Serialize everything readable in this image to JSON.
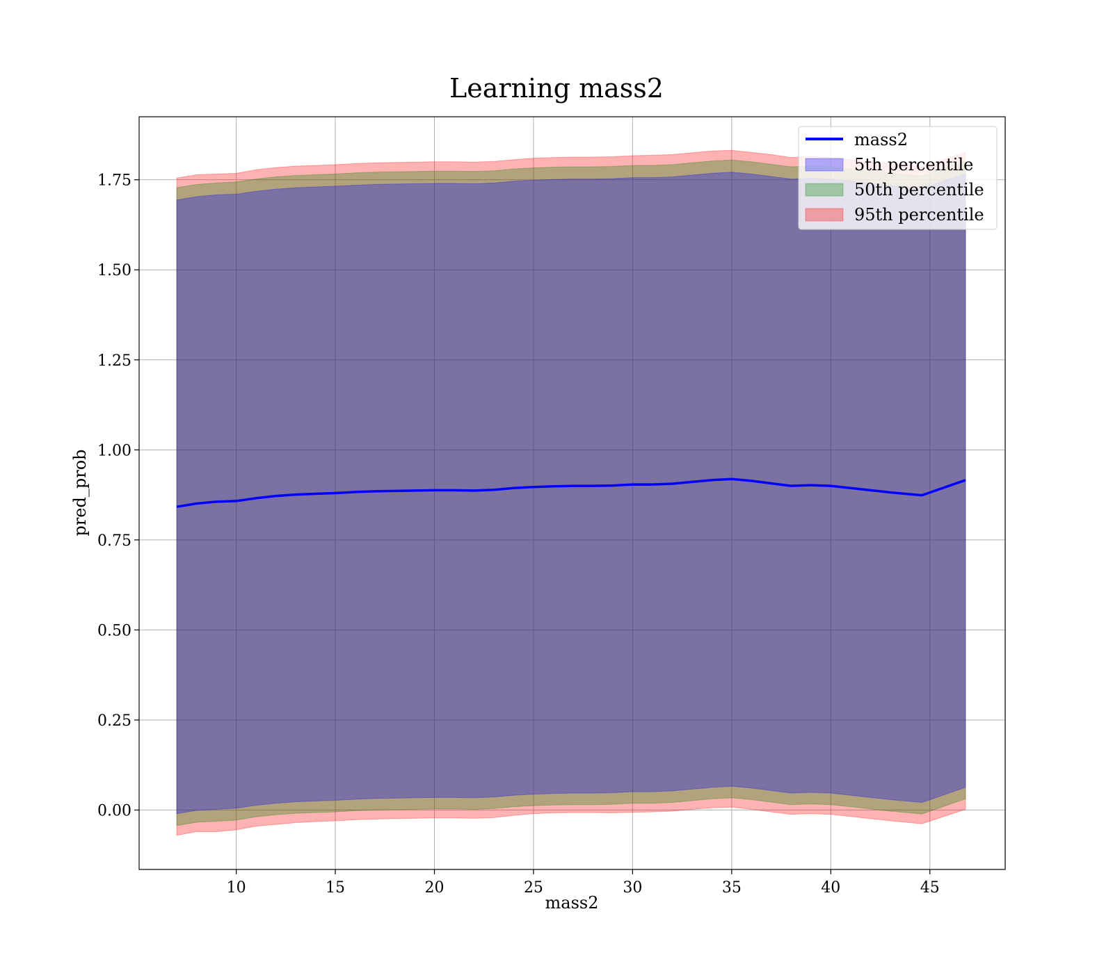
{
  "chart_data": {
    "type": "area",
    "title": "Learning mass2",
    "xlabel": "mass2",
    "ylabel": "pred_prob",
    "xlim": [
      5.1,
      48.8
    ],
    "ylim": [
      -0.165,
      1.925
    ],
    "xticks": [
      10,
      15,
      20,
      25,
      30,
      35,
      40,
      45
    ],
    "yticks": [
      0.0,
      0.25,
      0.5,
      0.75,
      1.0,
      1.25,
      1.5,
      1.75
    ],
    "xtick_labels": [
      "10",
      "15",
      "20",
      "25",
      "30",
      "35",
      "40",
      "45"
    ],
    "ytick_labels": [
      "0.00",
      "0.25",
      "0.50",
      "0.75",
      "1.00",
      "1.25",
      "1.50",
      "1.75"
    ],
    "grid": true,
    "legend_position": "top-right",
    "colors": {
      "line": "#0000ff",
      "band_5th": "#0000ff",
      "band_50th": "#008000",
      "band_95th": "#ff0000"
    },
    "legend": {
      "line_label": "mass2",
      "bands": [
        "5th percentile",
        "50th percentile",
        "95th percentile"
      ]
    },
    "x": [
      7.0,
      8.0,
      9.0,
      10.0,
      11.0,
      12.0,
      13.0,
      14.0,
      15.0,
      16.0,
      17.0,
      18.0,
      19.0,
      20.0,
      21.0,
      22.0,
      23.0,
      24.0,
      25.0,
      26.0,
      27.0,
      28.0,
      29.0,
      30.0,
      31.0,
      32.0,
      33.0,
      34.0,
      35.0,
      36.0,
      37.0,
      38.0,
      39.0,
      40.0,
      41.0,
      42.0,
      43.0,
      44.0,
      44.6,
      46.8
    ],
    "series": [
      {
        "name": "mass2",
        "values": [
          0.842,
          0.851,
          0.856,
          0.858,
          0.866,
          0.872,
          0.876,
          0.878,
          0.88,
          0.883,
          0.885,
          0.886,
          0.887,
          0.888,
          0.888,
          0.887,
          0.889,
          0.894,
          0.897,
          0.899,
          0.9,
          0.9,
          0.901,
          0.904,
          0.904,
          0.906,
          0.911,
          0.916,
          0.919,
          0.914,
          0.907,
          0.9,
          0.902,
          0.9,
          0.894,
          0.888,
          0.882,
          0.877,
          0.874,
          0.916
        ]
      }
    ],
    "bands": [
      {
        "name": "95th percentile",
        "lower": [
          -0.07,
          -0.06,
          -0.06,
          -0.055,
          -0.045,
          -0.04,
          -0.035,
          -0.032,
          -0.03,
          -0.027,
          -0.025,
          -0.024,
          -0.023,
          -0.022,
          -0.022,
          -0.023,
          -0.021,
          -0.015,
          -0.01,
          -0.008,
          -0.007,
          -0.007,
          -0.008,
          -0.006,
          -0.005,
          -0.003,
          0.002,
          0.006,
          0.008,
          0.002,
          -0.005,
          -0.012,
          -0.01,
          -0.012,
          -0.018,
          -0.024,
          -0.03,
          -0.035,
          -0.038,
          0.002
        ],
        "upper": [
          1.755,
          1.764,
          1.766,
          1.768,
          1.778,
          1.784,
          1.788,
          1.79,
          1.792,
          1.795,
          1.797,
          1.798,
          1.799,
          1.8,
          1.8,
          1.799,
          1.801,
          1.806,
          1.81,
          1.812,
          1.813,
          1.813,
          1.814,
          1.817,
          1.818,
          1.82,
          1.825,
          1.83,
          1.832,
          1.826,
          1.82,
          1.812,
          1.814,
          1.812,
          1.806,
          1.8,
          1.794,
          1.79,
          1.786,
          1.827
        ]
      },
      {
        "name": "50th percentile",
        "lower": [
          -0.043,
          -0.034,
          -0.031,
          -0.028,
          -0.019,
          -0.013,
          -0.009,
          -0.007,
          -0.005,
          -0.002,
          0.0,
          0.001,
          0.002,
          0.003,
          0.003,
          0.002,
          0.004,
          0.009,
          0.012,
          0.014,
          0.015,
          0.015,
          0.016,
          0.019,
          0.019,
          0.021,
          0.026,
          0.031,
          0.034,
          0.029,
          0.022,
          0.015,
          0.017,
          0.015,
          0.009,
          0.003,
          -0.003,
          -0.008,
          -0.011,
          0.031
        ],
        "upper": [
          1.728,
          1.737,
          1.741,
          1.744,
          1.752,
          1.758,
          1.762,
          1.764,
          1.766,
          1.769,
          1.771,
          1.772,
          1.773,
          1.774,
          1.774,
          1.773,
          1.775,
          1.78,
          1.783,
          1.785,
          1.786,
          1.786,
          1.787,
          1.79,
          1.79,
          1.792,
          1.797,
          1.802,
          1.805,
          1.8,
          1.793,
          1.786,
          1.788,
          1.786,
          1.78,
          1.774,
          1.768,
          1.763,
          1.76,
          1.802
        ]
      },
      {
        "name": "5th percentile",
        "lower": [
          -0.01,
          -0.001,
          0.002,
          0.005,
          0.013,
          0.019,
          0.023,
          0.025,
          0.027,
          0.03,
          0.032,
          0.033,
          0.034,
          0.035,
          0.035,
          0.034,
          0.036,
          0.041,
          0.044,
          0.046,
          0.047,
          0.047,
          0.048,
          0.051,
          0.051,
          0.053,
          0.058,
          0.063,
          0.066,
          0.061,
          0.054,
          0.047,
          0.049,
          0.047,
          0.041,
          0.035,
          0.029,
          0.024,
          0.021,
          0.063
        ],
        "upper": [
          1.694,
          1.703,
          1.708,
          1.71,
          1.718,
          1.724,
          1.728,
          1.73,
          1.732,
          1.735,
          1.737,
          1.738,
          1.739,
          1.74,
          1.74,
          1.739,
          1.741,
          1.746,
          1.749,
          1.751,
          1.752,
          1.752,
          1.753,
          1.756,
          1.756,
          1.758,
          1.763,
          1.768,
          1.771,
          1.766,
          1.759,
          1.752,
          1.754,
          1.752,
          1.746,
          1.74,
          1.734,
          1.729,
          1.726,
          1.768
        ]
      }
    ]
  }
}
